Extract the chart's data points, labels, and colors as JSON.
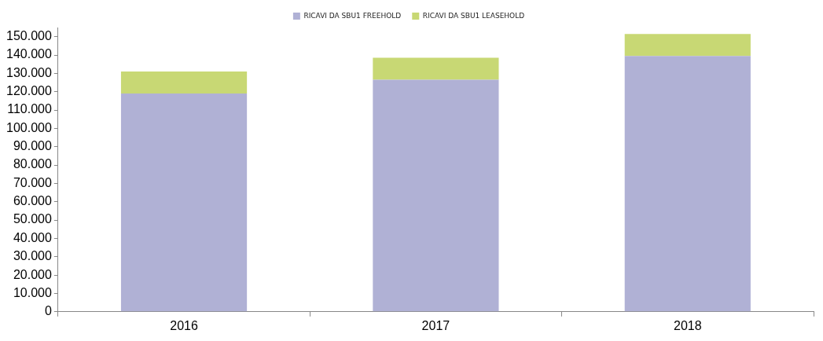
{
  "chart_data": {
    "type": "bar",
    "stacked": true,
    "categories": [
      "2016",
      "2017",
      "2018"
    ],
    "series": [
      {
        "name": "RICAVI DA SBU1 FREEHOLD",
        "color": "#b0b1d5",
        "values": [
          119000,
          126500,
          139500
        ]
      },
      {
        "name": "RICAVI DA SBU1 LEASEHOLD",
        "color": "#c8d874",
        "values": [
          12000,
          12000,
          12000
        ]
      }
    ],
    "ylim": [
      0,
      155000
    ],
    "yticks": [
      {
        "value": 0,
        "label": "0"
      },
      {
        "value": 10000,
        "label": "10.000"
      },
      {
        "value": 20000,
        "label": "20.000"
      },
      {
        "value": 30000,
        "label": "30.000"
      },
      {
        "value": 40000,
        "label": "40.000"
      },
      {
        "value": 50000,
        "label": "50.000"
      },
      {
        "value": 60000,
        "label": "60.000"
      },
      {
        "value": 70000,
        "label": "70.000"
      },
      {
        "value": 80000,
        "label": "80.000"
      },
      {
        "value": 90000,
        "label": "90.000"
      },
      {
        "value": 100000,
        "label": "100.000"
      },
      {
        "value": 110000,
        "label": "110.000"
      },
      {
        "value": 120000,
        "label": "120.000"
      },
      {
        "value": 130000,
        "label": "130.000"
      },
      {
        "value": 140000,
        "label": "140.000"
      },
      {
        "value": 150000,
        "label": "150.000"
      }
    ],
    "legend": "top",
    "grid": false
  }
}
